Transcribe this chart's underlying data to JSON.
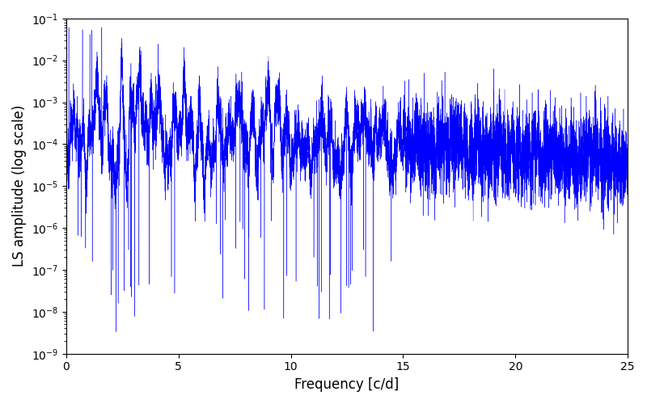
{
  "xlabel": "Frequency [c/d]",
  "ylabel": "LS amplitude (log scale)",
  "line_color": "#0000ff",
  "xlim": [
    0,
    25
  ],
  "ylim": [
    1e-09,
    0.1
  ],
  "seed": 42,
  "n_points": 10000,
  "freq_max": 25.0,
  "figsize": [
    8.0,
    5.0
  ],
  "dpi": 100
}
